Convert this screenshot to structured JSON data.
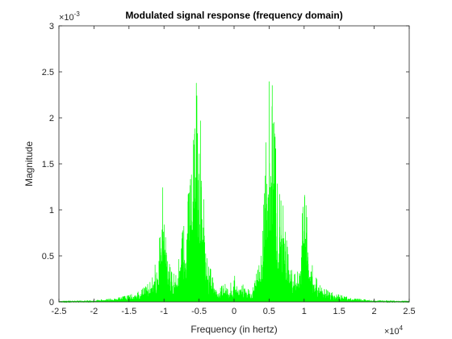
{
  "chart_data": {
    "type": "line",
    "title": "Modulated signal response (frequency domain)",
    "xlabel": "Frequency (in hertz)",
    "ylabel": "Magnitude",
    "xlim": [
      -25000,
      25000
    ],
    "ylim": [
      0,
      0.003
    ],
    "x_ticks": [
      -25000,
      -20000,
      -15000,
      -10000,
      -5000,
      0,
      5000,
      10000,
      15000,
      20000,
      25000
    ],
    "x_tick_labels": [
      "-2.5",
      "-2",
      "-1.5",
      "-1",
      "-0.5",
      "0",
      "0.5",
      "1",
      "1.5",
      "2",
      "2.5"
    ],
    "x_exponent": {
      "base": "×10",
      "power": "4"
    },
    "y_ticks": [
      0,
      0.0005,
      0.001,
      0.0015,
      0.002,
      0.0025,
      0.003
    ],
    "y_tick_labels": [
      "0",
      "0.5",
      "1",
      "1.5",
      "2",
      "2.5",
      "3"
    ],
    "y_exponent": {
      "base": "×10",
      "power": "-3"
    },
    "grid": false,
    "series": [
      {
        "color": "#00ff00",
        "envelope_x": [
          -25000,
          -20000,
          -17000,
          -15000,
          -13500,
          -12500,
          -11500,
          -10500,
          -10200,
          -10000,
          -9800,
          -9500,
          -9000,
          -8500,
          -8000,
          -7500,
          -7000,
          -6500,
          -6000,
          -5700,
          -5400,
          -5200,
          -5000,
          -4800,
          -4600,
          -4300,
          -4000,
          -3700,
          -3500,
          -3000,
          -2500,
          -2000,
          -1500,
          -1200,
          -800,
          -500,
          -200,
          0,
          200,
          500,
          800,
          1200,
          1500,
          2000,
          2500,
          3000,
          3500,
          3700,
          4000,
          4300,
          4600,
          4800,
          5000,
          5200,
          5400,
          5700,
          6000,
          6500,
          7000,
          7500,
          8000,
          8500,
          9000,
          9500,
          9800,
          10000,
          10200,
          10500,
          11500,
          12500,
          13500,
          15000,
          17000,
          20000,
          25000
        ],
        "envelope_y": [
          1e-05,
          2e-05,
          4e-05,
          8e-05,
          0.00012,
          0.00018,
          0.0003,
          0.0008,
          0.00125,
          0.00128,
          0.0011,
          0.0006,
          0.00035,
          0.0003,
          0.0004,
          0.0007,
          0.00105,
          0.0012,
          0.0016,
          0.00205,
          0.0025,
          0.0021,
          0.0025,
          0.0021,
          0.00185,
          0.0012,
          0.0007,
          0.00035,
          0.00045,
          0.00025,
          0.00012,
          0.00015,
          0.00022,
          0.0002,
          0.00012,
          0.00022,
          0.00012,
          0.00045,
          0.00012,
          0.00022,
          0.00012,
          0.0002,
          0.00022,
          0.00015,
          0.00012,
          0.00025,
          0.00045,
          0.00035,
          0.0007,
          0.0012,
          0.00185,
          0.0021,
          0.0025,
          0.0021,
          0.0025,
          0.00205,
          0.0016,
          0.0012,
          0.00105,
          0.0007,
          0.0004,
          0.0003,
          0.00035,
          0.0006,
          0.0011,
          0.00128,
          0.00125,
          0.0008,
          0.0003,
          0.00018,
          0.00012,
          8e-05,
          4e-05,
          2e-05,
          1e-05
        ]
      }
    ]
  }
}
